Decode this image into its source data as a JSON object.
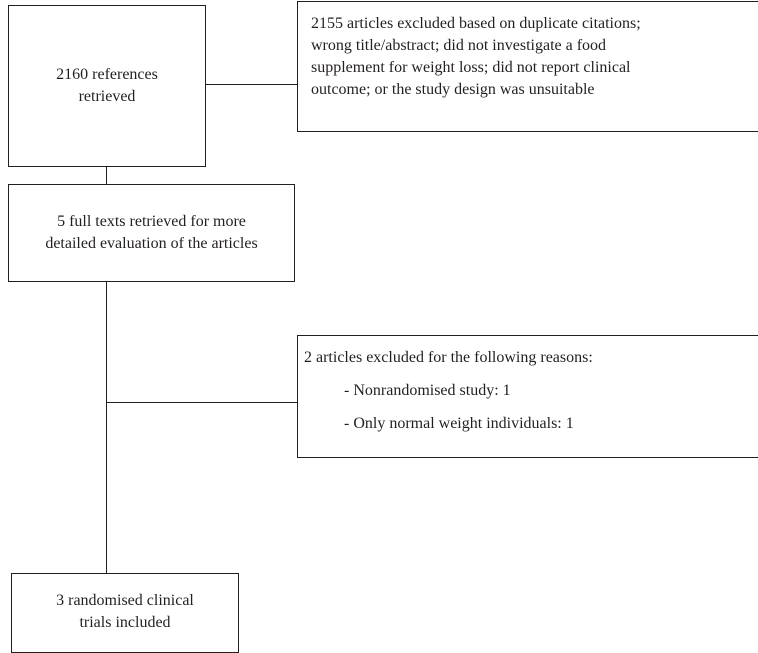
{
  "flow": {
    "retrieved": {
      "line1": "2160 references",
      "line2": "retrieved"
    },
    "excluded_first": {
      "lines": [
        "2155 articles excluded based on duplicate citations;",
        "wrong title/abstract; did not investigate a food",
        "supplement for weight loss; did not report clinical",
        "outcome; or the study design was unsuitable"
      ]
    },
    "full_texts": {
      "line1": "5 full texts retrieved for more",
      "line2": "detailed evaluation of the articles"
    },
    "excluded_second": {
      "title": "2 articles excluded for the following reasons:",
      "reasons": [
        "- Nonrandomised study: 1",
        "- Only normal weight individuals: 1"
      ]
    },
    "included": {
      "line1": "3 randomised clinical",
      "line2": "trials included"
    }
  }
}
